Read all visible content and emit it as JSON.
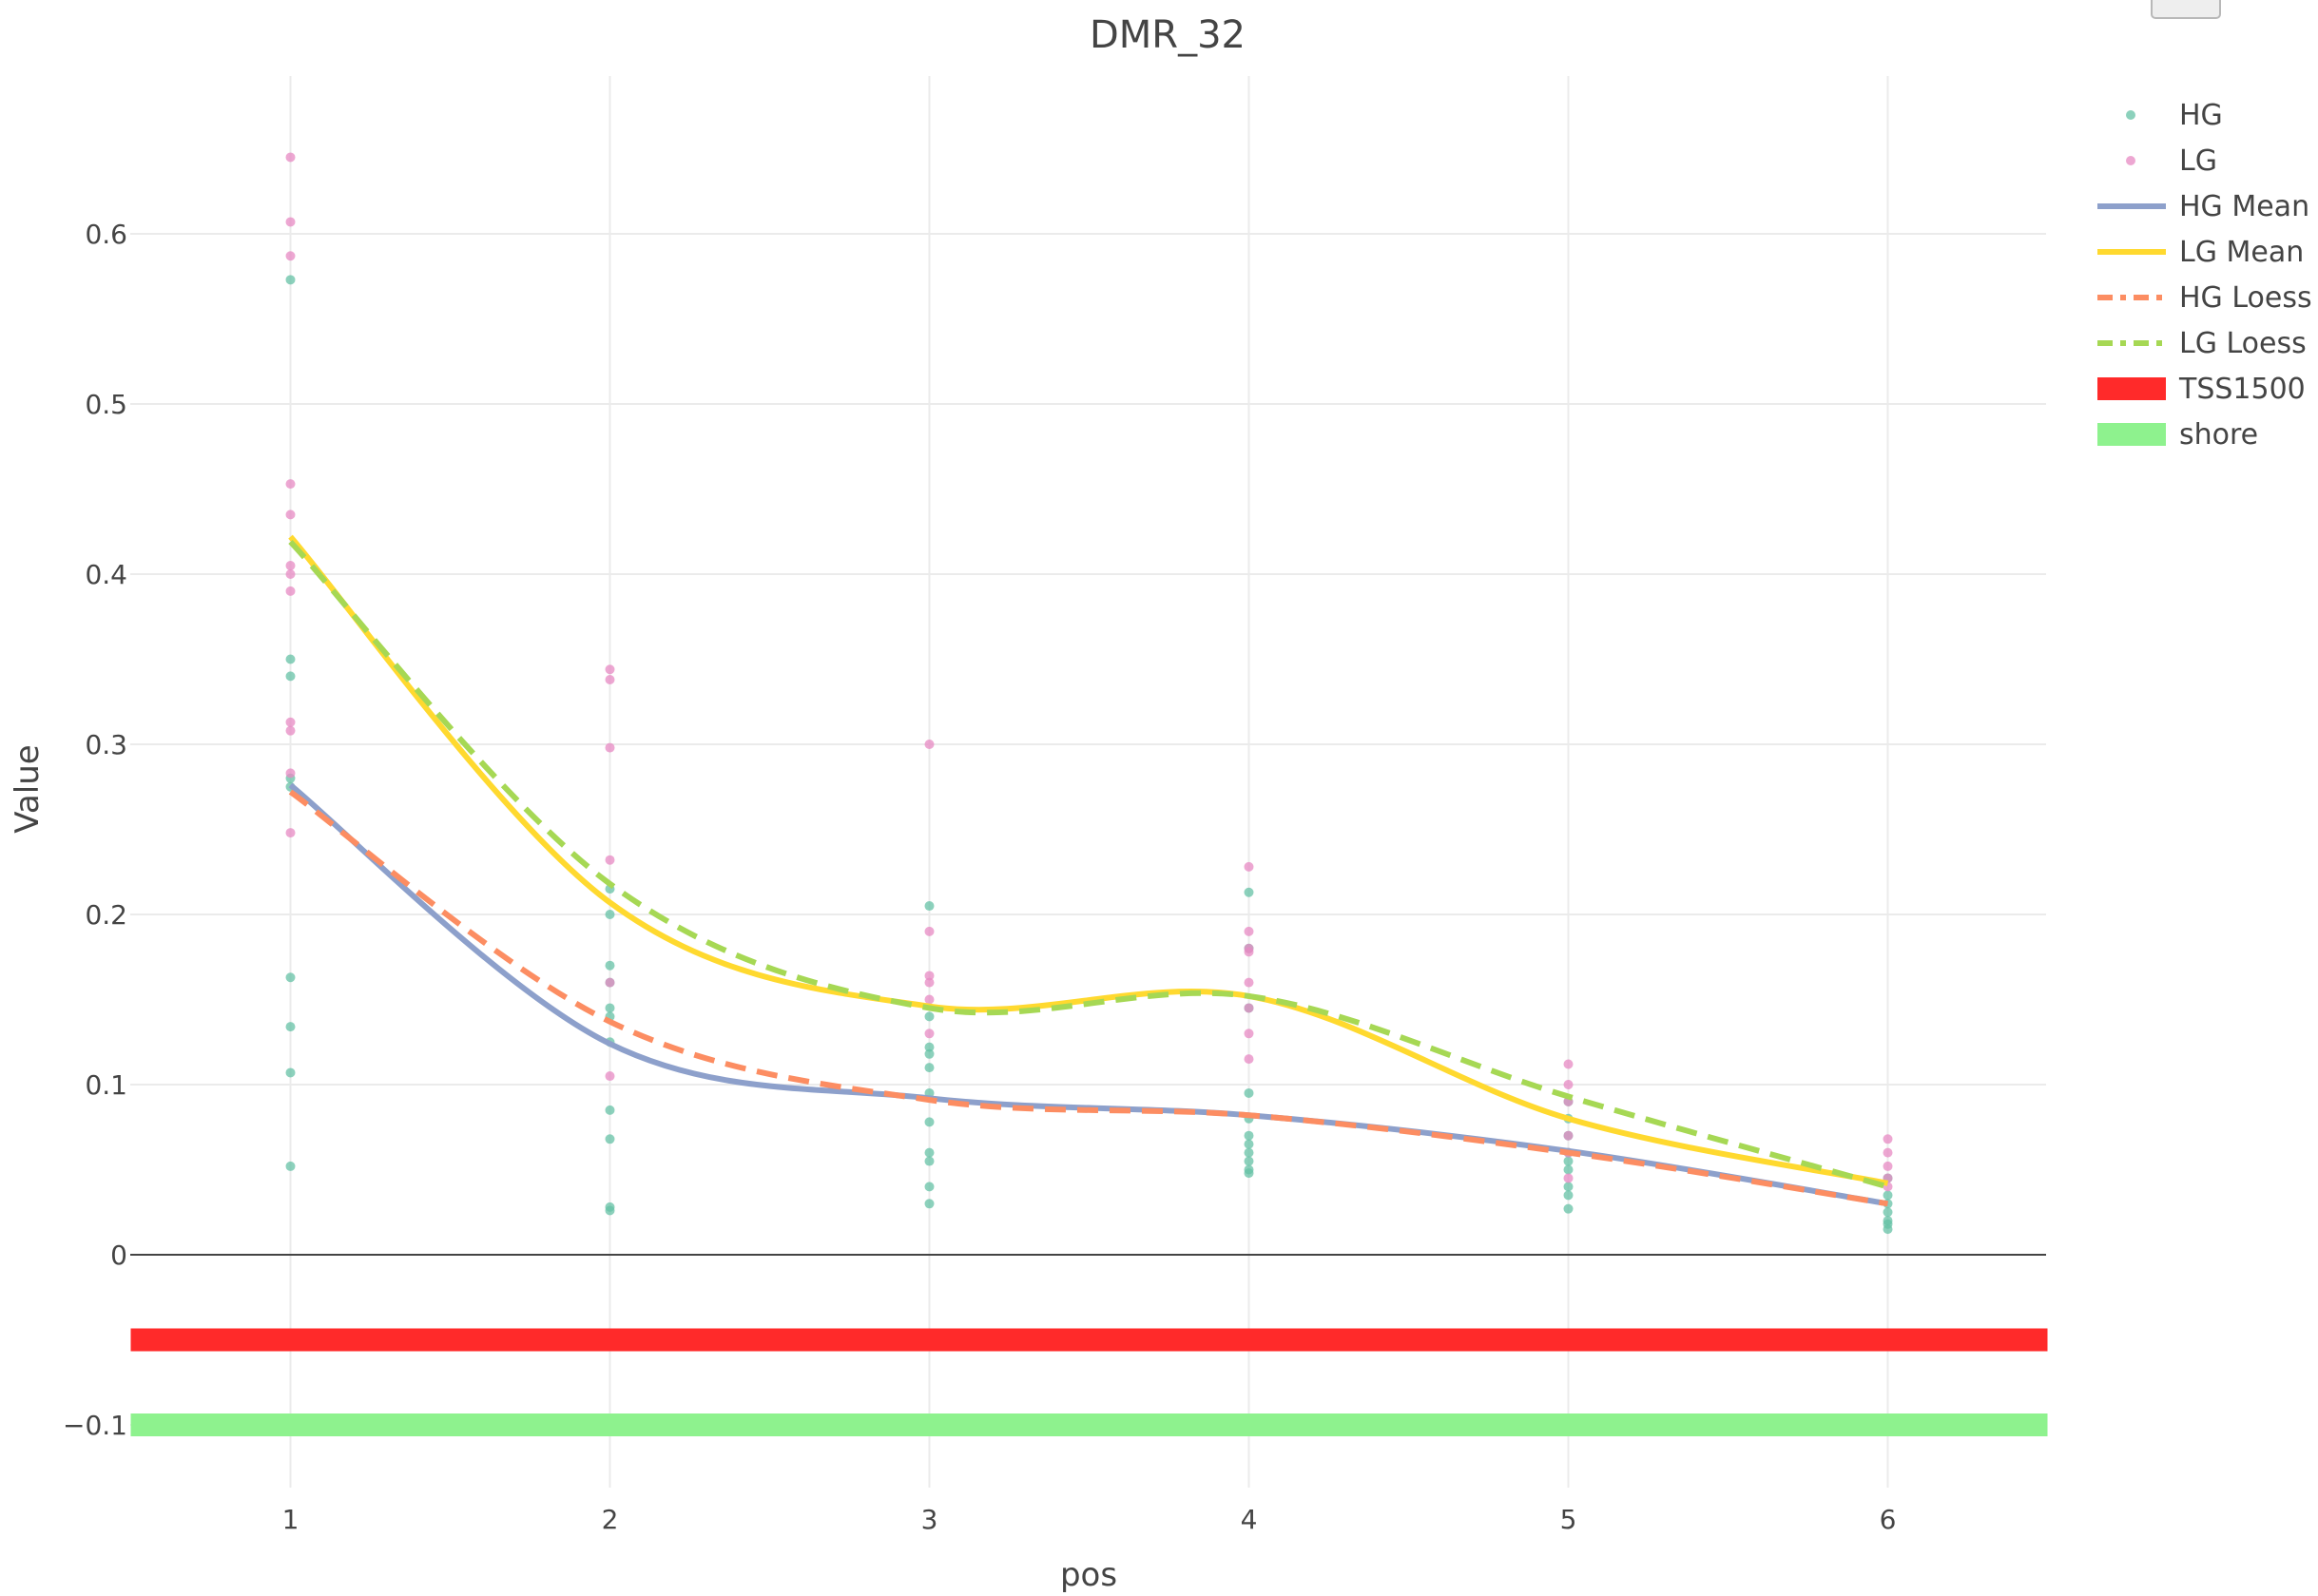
{
  "chart_data": {
    "type": "scatter",
    "title": "DMR_32",
    "xlabel": "pos",
    "ylabel": "Value",
    "xlim": [
      0.5,
      6.5
    ],
    "ylim": [
      -0.11,
      0.67
    ],
    "x_ticks": [
      1,
      2,
      3,
      4,
      5,
      6
    ],
    "y_ticks": [
      -0.1,
      0,
      0.1,
      0.2,
      0.3,
      0.4,
      0.5,
      0.6
    ],
    "y_tick_labels": [
      "−0.1",
      "0",
      "0.1",
      "0.2",
      "0.3",
      "0.4",
      "0.5",
      "0.6"
    ],
    "grid": true,
    "legend_position": "right",
    "colors": {
      "HG": "#66c2a5",
      "LG": "#e78ac3",
      "HG Mean": "#8da0cb",
      "LG Mean": "#ffd92f",
      "HG Loess": "#fc8d62",
      "LG Loess": "#a6d854",
      "TSS1500": "#ff2a2a",
      "shore": "#8ef28e"
    },
    "points": [
      {
        "name": "HG",
        "x": [
          1,
          1,
          1,
          1,
          1,
          1,
          1,
          1,
          1,
          2,
          2,
          2,
          2,
          2,
          2,
          2,
          2,
          2,
          2,
          2,
          3,
          3,
          3,
          3,
          3,
          3,
          3,
          3,
          3,
          3,
          3,
          4,
          4,
          4,
          4,
          4,
          4,
          4,
          4,
          4,
          4,
          4,
          5,
          5,
          5,
          5,
          5,
          5,
          5,
          5,
          5,
          6,
          6,
          6,
          6,
          6,
          6,
          6
        ],
        "y": [
          0.573,
          0.35,
          0.34,
          0.28,
          0.275,
          0.163,
          0.134,
          0.107,
          0.052,
          0.215,
          0.2,
          0.17,
          0.16,
          0.145,
          0.14,
          0.125,
          0.085,
          0.068,
          0.028,
          0.026,
          0.205,
          0.14,
          0.122,
          0.118,
          0.11,
          0.095,
          0.078,
          0.06,
          0.055,
          0.04,
          0.03,
          0.213,
          0.18,
          0.145,
          0.095,
          0.08,
          0.07,
          0.065,
          0.06,
          0.055,
          0.05,
          0.048,
          0.09,
          0.08,
          0.07,
          0.06,
          0.055,
          0.05,
          0.04,
          0.035,
          0.027,
          0.045,
          0.035,
          0.03,
          0.025,
          0.02,
          0.018,
          0.015
        ]
      },
      {
        "name": "LG",
        "x": [
          1,
          1,
          1,
          1,
          1,
          1,
          1,
          1,
          1,
          1,
          1,
          1,
          2,
          2,
          2,
          2,
          2,
          2,
          3,
          3,
          3,
          3,
          3,
          3,
          4,
          4,
          4,
          4,
          4,
          4,
          4,
          4,
          5,
          5,
          5,
          5,
          5,
          5,
          6,
          6,
          6,
          6,
          6
        ],
        "y": [
          0.645,
          0.607,
          0.587,
          0.453,
          0.435,
          0.405,
          0.4,
          0.39,
          0.313,
          0.308,
          0.283,
          0.248,
          0.344,
          0.338,
          0.298,
          0.232,
          0.16,
          0.105,
          0.3,
          0.19,
          0.164,
          0.16,
          0.15,
          0.13,
          0.228,
          0.19,
          0.18,
          0.178,
          0.16,
          0.145,
          0.13,
          0.115,
          0.112,
          0.1,
          0.09,
          0.07,
          0.06,
          0.045,
          0.068,
          0.06,
          0.052,
          0.045,
          0.04
        ]
      }
    ],
    "lines": [
      {
        "name": "HG Mean",
        "dash": "solid",
        "x": [
          1,
          2,
          3,
          4,
          5,
          6
        ],
        "y": [
          0.276,
          0.124,
          0.092,
          0.082,
          0.061,
          0.03
        ]
      },
      {
        "name": "LG Mean",
        "dash": "solid",
        "x": [
          1,
          2,
          3,
          4,
          5,
          6
        ],
        "y": [
          0.422,
          0.207,
          0.146,
          0.152,
          0.08,
          0.042
        ]
      },
      {
        "name": "HG Loess",
        "dash": "dash",
        "x": [
          1,
          2,
          3,
          4,
          5,
          6
        ],
        "y": [
          0.272,
          0.137,
          0.091,
          0.082,
          0.06,
          0.03
        ]
      },
      {
        "name": "LG Loess",
        "dash": "dash",
        "x": [
          1,
          2,
          3,
          4,
          5,
          6
        ],
        "y": [
          0.419,
          0.218,
          0.145,
          0.152,
          0.093,
          0.04
        ]
      }
    ],
    "bands": [
      {
        "name": "TSS1500",
        "y": -0.05,
        "x_range": [
          0.5,
          6.5
        ]
      },
      {
        "name": "shore",
        "y": -0.1,
        "x_range": [
          0.5,
          6.5
        ]
      }
    ],
    "legend": [
      "HG",
      "LG",
      "HG Mean",
      "LG Mean",
      "HG Loess",
      "LG Loess",
      "TSS1500",
      "shore"
    ]
  }
}
